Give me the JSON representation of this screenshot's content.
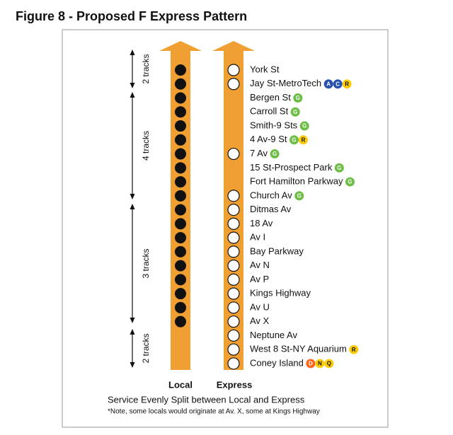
{
  "title": "Figure 8 - Proposed F Express Pattern",
  "tracks": [
    "2 tracks",
    "4 tracks",
    "3 tracks",
    "2 tracks"
  ],
  "stations": [
    {
      "name": "York St",
      "local": true,
      "express": true,
      "lines": []
    },
    {
      "name": "Jay St-MetroTech",
      "local": true,
      "express": true,
      "lines": [
        {
          "letter": "A",
          "color": "#2850ad"
        },
        {
          "letter": "C",
          "color": "#2850ad"
        },
        {
          "letter": "R",
          "color": "#fccc0a"
        }
      ]
    },
    {
      "name": "Bergen St",
      "local": true,
      "express": false,
      "lines": [
        {
          "letter": "G",
          "color": "#6cbe45"
        }
      ]
    },
    {
      "name": "Carroll St",
      "local": true,
      "express": false,
      "lines": [
        {
          "letter": "G",
          "color": "#6cbe45"
        }
      ]
    },
    {
      "name": "Smith-9 Sts",
      "local": true,
      "express": false,
      "lines": [
        {
          "letter": "G",
          "color": "#6cbe45"
        }
      ]
    },
    {
      "name": "4 Av-9 St",
      "local": true,
      "express": false,
      "lines": [
        {
          "letter": "G",
          "color": "#6cbe45"
        },
        {
          "letter": "R",
          "color": "#fccc0a"
        }
      ]
    },
    {
      "name": "7 Av",
      "local": true,
      "express": true,
      "lines": [
        {
          "letter": "G",
          "color": "#6cbe45"
        }
      ]
    },
    {
      "name": "15 St-Prospect Park",
      "local": true,
      "express": false,
      "lines": [
        {
          "letter": "G",
          "color": "#6cbe45"
        }
      ]
    },
    {
      "name": "Fort Hamilton Parkway",
      "local": true,
      "express": false,
      "lines": [
        {
          "letter": "G",
          "color": "#6cbe45"
        }
      ]
    },
    {
      "name": "Church Av",
      "local": true,
      "express": true,
      "lines": [
        {
          "letter": "G",
          "color": "#6cbe45"
        }
      ]
    },
    {
      "name": "Ditmas Av",
      "local": true,
      "express": true,
      "lines": []
    },
    {
      "name": "18 Av",
      "local": true,
      "express": true,
      "lines": []
    },
    {
      "name": "Av I",
      "local": true,
      "express": true,
      "lines": []
    },
    {
      "name": "Bay Parkway",
      "local": true,
      "express": true,
      "lines": []
    },
    {
      "name": "Av N",
      "local": true,
      "express": true,
      "lines": []
    },
    {
      "name": "Av P",
      "local": true,
      "express": true,
      "lines": []
    },
    {
      "name": "Kings Highway",
      "local": true,
      "express": true,
      "lines": []
    },
    {
      "name": "Av U",
      "local": true,
      "express": true,
      "lines": []
    },
    {
      "name": "Av X",
      "local": true,
      "express": true,
      "lines": []
    },
    {
      "name": "Neptune Av",
      "local": false,
      "express": true,
      "lines": []
    },
    {
      "name": "West 8 St-NY Aquarium",
      "local": false,
      "express": true,
      "lines": [
        {
          "letter": "R",
          "color": "#fccc0a"
        }
      ]
    },
    {
      "name": "Coney Island",
      "local": false,
      "express": true,
      "lines": [
        {
          "letter": "D",
          "color": "#ff6319"
        },
        {
          "letter": "N",
          "color": "#fccc0a"
        },
        {
          "letter": "Q",
          "color": "#fccc0a"
        }
      ]
    }
  ],
  "local_label": "Local",
  "express_label": "Express",
  "caption": "Service Evenly Split between Local and Express",
  "note": "*Note, some locals would originate at Av. X, some at Kings Highway"
}
